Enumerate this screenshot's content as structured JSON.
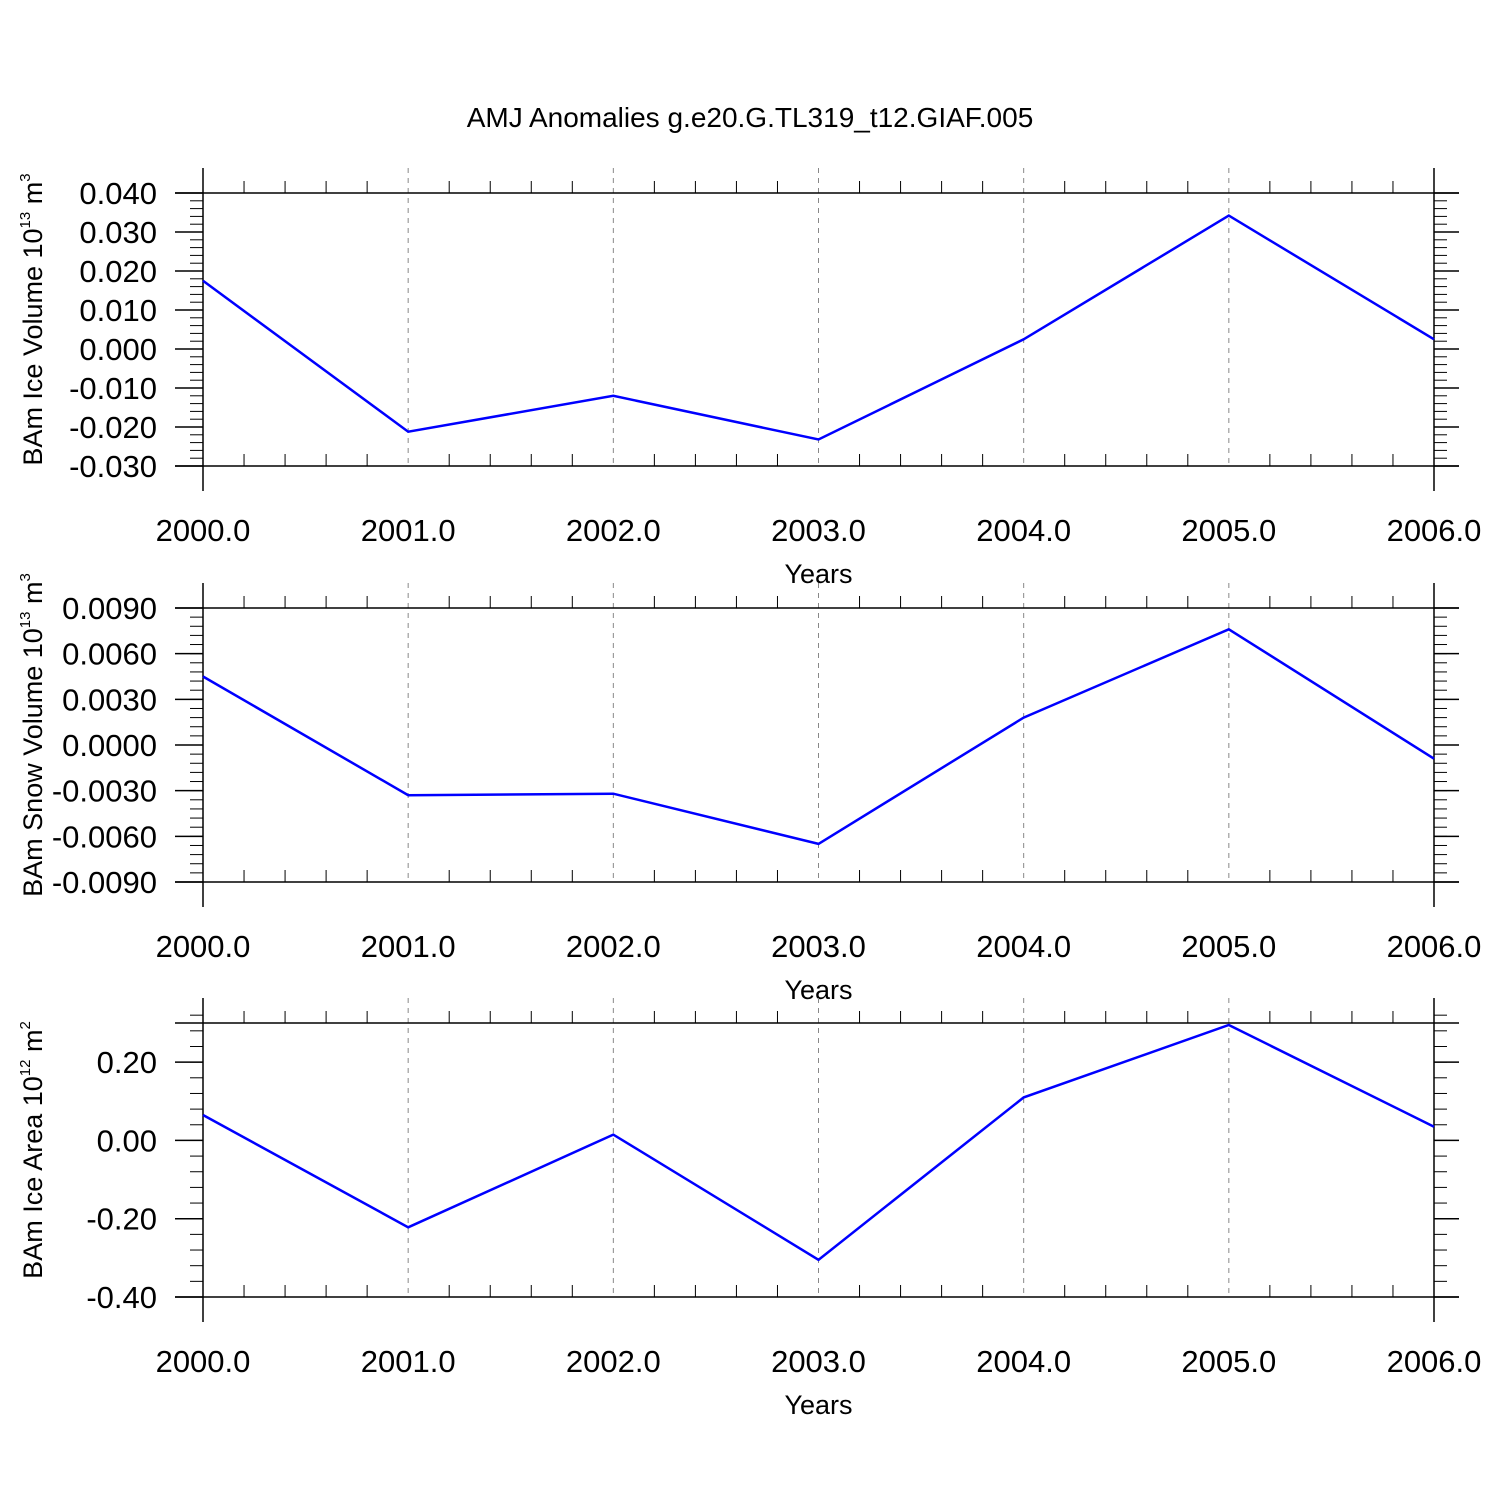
{
  "title": "AMJ Anomalies g.e20.G.TL319_t12.GIAF.005",
  "colors": {
    "line": "#0000ff",
    "axis": "#000000",
    "grid": "#888888"
  },
  "chart_data": [
    {
      "type": "line",
      "xlabel": "Years",
      "ylabel": {
        "text": "BAm Ice Volume 10",
        "sup": "13",
        "unit": " m",
        "unit_sup": "3"
      },
      "x": [
        2000,
        2001,
        2002,
        2003,
        2004,
        2005,
        2006
      ],
      "x_tick_labels": [
        "2000.0",
        "2001.0",
        "2002.0",
        "2003.0",
        "2004.0",
        "2005.0",
        "2006.0"
      ],
      "xlim": [
        2000,
        2006
      ],
      "ylim": [
        -0.03,
        0.04
      ],
      "y_ticks": [
        0.04,
        0.03,
        0.02,
        0.01,
        0.0,
        -0.01,
        -0.02,
        -0.03
      ],
      "y_tick_labels": [
        "0.040",
        "0.030",
        "0.020",
        "0.010",
        "0.000",
        "-0.010",
        "-0.020",
        "-0.030"
      ],
      "y_minor_step": 0.002,
      "series": [
        {
          "values": [
            0.0175,
            -0.0212,
            -0.012,
            -0.0232,
            0.0025,
            0.0342,
            0.0025
          ]
        }
      ],
      "grid": "vertical dashed"
    },
    {
      "type": "line",
      "xlabel": "Years",
      "ylabel": {
        "text": "BAm Snow Volume 10",
        "sup": "13",
        "unit": " m",
        "unit_sup": "3"
      },
      "x": [
        2000,
        2001,
        2002,
        2003,
        2004,
        2005,
        2006
      ],
      "x_tick_labels": [
        "2000.0",
        "2001.0",
        "2002.0",
        "2003.0",
        "2004.0",
        "2005.0",
        "2006.0"
      ],
      "xlim": [
        2000,
        2006
      ],
      "ylim": [
        -0.009,
        0.009
      ],
      "y_ticks": [
        0.009,
        0.006,
        0.003,
        0.0,
        -0.003,
        -0.006,
        -0.009
      ],
      "y_tick_labels": [
        "0.0090",
        "0.0060",
        "0.0030",
        "0.0000",
        "-0.0030",
        "-0.0060",
        "-0.0090"
      ],
      "y_minor_step": 0.0006,
      "series": [
        {
          "values": [
            0.0045,
            -0.0033,
            -0.0032,
            -0.0065,
            0.0018,
            0.0076,
            -0.0009
          ]
        }
      ],
      "grid": "vertical dashed"
    },
    {
      "type": "line",
      "xlabel": "Years",
      "ylabel": {
        "text": "BAm Ice Area 10",
        "sup": "12",
        "unit": " m",
        "unit_sup": "2"
      },
      "x": [
        2000,
        2001,
        2002,
        2003,
        2004,
        2005,
        2006
      ],
      "x_tick_labels": [
        "2000.0",
        "2001.0",
        "2002.0",
        "2003.0",
        "2004.0",
        "2005.0",
        "2006.0"
      ],
      "xlim": [
        2000,
        2006
      ],
      "ylim": [
        -0.4,
        0.3
      ],
      "y_ticks": [
        0.2,
        0.0,
        -0.2,
        -0.4
      ],
      "y_tick_labels": [
        "0.20",
        "0.00",
        "-0.20",
        "-0.40"
      ],
      "y_minor_step": 0.04,
      "series": [
        {
          "values": [
            0.065,
            -0.222,
            0.015,
            -0.305,
            0.11,
            0.295,
            0.035
          ]
        }
      ],
      "grid": "vertical dashed"
    }
  ]
}
